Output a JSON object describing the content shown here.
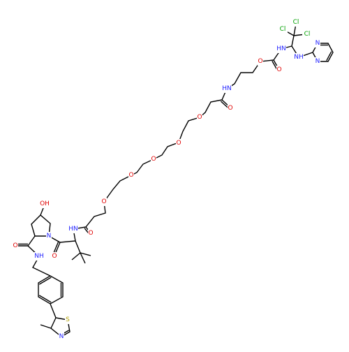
{
  "molecule": {
    "atom_labels": [
      "Cl",
      "Cl",
      "Cl",
      "HN",
      "NH",
      "N",
      "N",
      "O",
      "O",
      "HN",
      "O",
      "O",
      "O",
      "O",
      "O",
      "O",
      "HN",
      "O",
      "O",
      "N",
      "OH",
      "O",
      "NH",
      "S",
      "N"
    ]
  }
}
